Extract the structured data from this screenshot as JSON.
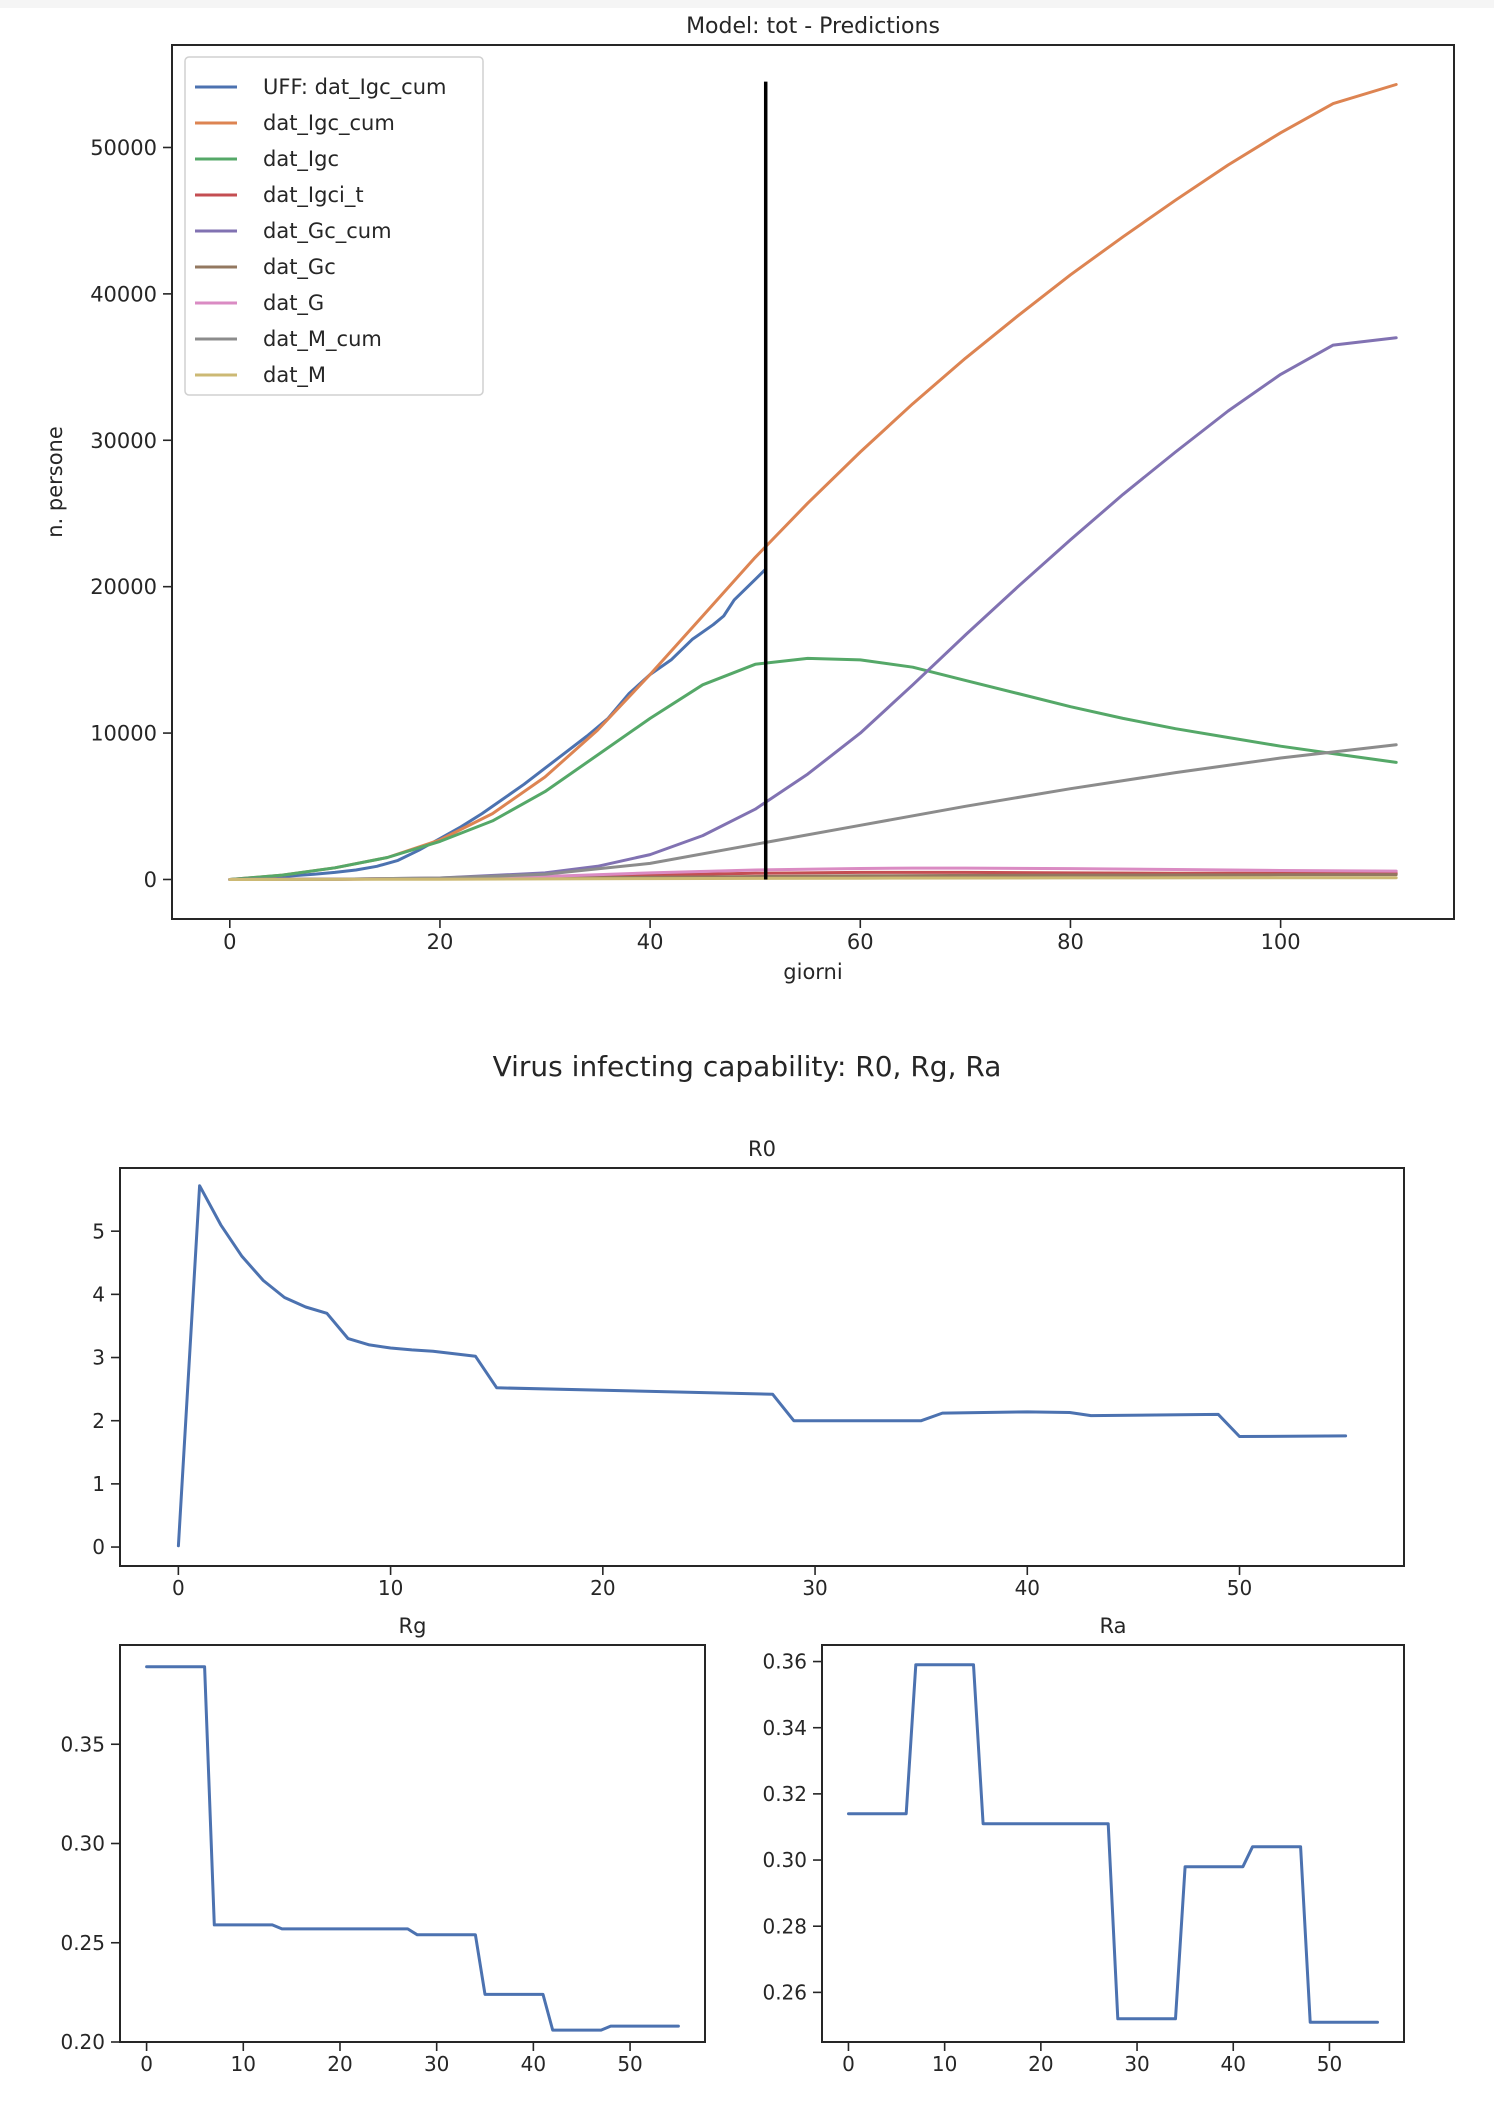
{
  "suptitle": "Virus infecting capability: R0, Rg, Ra",
  "chart_data": [
    {
      "id": "predictions",
      "type": "line",
      "title": "Model: tot - Predictions",
      "xlabel": "giorni",
      "ylabel": "n. persone",
      "xlim": [
        -5.5,
        116.5
      ],
      "ylim": [
        -2700,
        57000
      ],
      "xticks": [
        0,
        20,
        40,
        60,
        80,
        100
      ],
      "yticks": [
        0,
        10000,
        20000,
        30000,
        40000,
        50000
      ],
      "grid": false,
      "legend_position": "upper left",
      "vline": {
        "x": 51,
        "y0": 0,
        "y1": 54500,
        "color": "#000000"
      },
      "series": [
        {
          "name": "UFF: dat_Igc_cum",
          "color": "#4c72b0",
          "x": [
            0,
            2,
            4,
            6,
            8,
            10,
            12,
            14,
            16,
            18,
            20,
            22,
            24,
            26,
            28,
            30,
            32,
            34,
            36,
            38,
            40,
            42,
            44,
            46,
            47,
            48,
            50,
            51
          ],
          "y": [
            0,
            80,
            150,
            250,
            350,
            480,
            650,
            900,
            1300,
            2000,
            2800,
            3600,
            4500,
            5500,
            6500,
            7600,
            8700,
            9800,
            11000,
            12700,
            14000,
            15000,
            16400,
            17400,
            18000,
            19100,
            20500,
            21200
          ]
        },
        {
          "name": "dat_Igc_cum",
          "color": "#dd8452",
          "x": [
            0,
            5,
            10,
            15,
            20,
            25,
            30,
            35,
            40,
            45,
            50,
            55,
            60,
            65,
            70,
            75,
            80,
            85,
            90,
            95,
            100,
            105,
            111
          ],
          "y": [
            0,
            300,
            800,
            1500,
            2700,
            4500,
            7000,
            10200,
            14000,
            18000,
            22000,
            25700,
            29200,
            32500,
            35600,
            38500,
            41300,
            43900,
            46400,
            48800,
            51000,
            53000,
            54300
          ]
        },
        {
          "name": "dat_Igc",
          "color": "#55a868",
          "x": [
            0,
            5,
            10,
            15,
            20,
            25,
            30,
            35,
            40,
            45,
            50,
            55,
            60,
            65,
            70,
            75,
            80,
            85,
            90,
            95,
            100,
            105,
            111
          ],
          "y": [
            0,
            300,
            800,
            1500,
            2600,
            4000,
            6000,
            8500,
            11000,
            13300,
            14700,
            15100,
            15000,
            14500,
            13600,
            12700,
            11800,
            11000,
            10300,
            9700,
            9100,
            8600,
            8000
          ]
        },
        {
          "name": "dat_Igci_t",
          "color": "#c44e52",
          "x": [
            0,
            10,
            20,
            30,
            40,
            50,
            60,
            70,
            80,
            90,
            100,
            111
          ],
          "y": [
            0,
            20,
            60,
            150,
            300,
            420,
            480,
            480,
            450,
            430,
            420,
            420
          ]
        },
        {
          "name": "dat_Gc_cum",
          "color": "#8172b2",
          "x": [
            0,
            10,
            20,
            30,
            35,
            40,
            45,
            50,
            55,
            60,
            65,
            70,
            75,
            80,
            85,
            90,
            95,
            100,
            105,
            111
          ],
          "y": [
            0,
            20,
            100,
            450,
            900,
            1700,
            3000,
            4800,
            7200,
            10000,
            13300,
            16700,
            20000,
            23200,
            26300,
            29200,
            32000,
            34500,
            36500,
            37000
          ]
        },
        {
          "name": "dat_Gc",
          "color": "#937860",
          "x": [
            0,
            20,
            40,
            60,
            80,
            100,
            111
          ],
          "y": [
            0,
            50,
            150,
            250,
            300,
            320,
            330
          ]
        },
        {
          "name": "dat_G",
          "color": "#da8bc3",
          "x": [
            0,
            10,
            20,
            30,
            40,
            50,
            60,
            65,
            70,
            80,
            90,
            100,
            111
          ],
          "y": [
            0,
            20,
            80,
            200,
            450,
            650,
            750,
            780,
            780,
            740,
            680,
            610,
            570
          ]
        },
        {
          "name": "dat_M_cum",
          "color": "#8c8c8c",
          "x": [
            0,
            10,
            20,
            30,
            40,
            50,
            60,
            70,
            80,
            90,
            100,
            111
          ],
          "y": [
            0,
            20,
            100,
            350,
            1100,
            2400,
            3700,
            5000,
            6200,
            7300,
            8300,
            9200
          ]
        },
        {
          "name": "dat_M",
          "color": "#ccb974",
          "x": [
            0,
            20,
            40,
            60,
            80,
            100,
            111
          ],
          "y": [
            0,
            20,
            60,
            90,
            110,
            120,
            120
          ]
        }
      ]
    },
    {
      "id": "r0",
      "type": "line",
      "title": "R0",
      "xlabel": "",
      "ylabel": "",
      "xlim": [
        -2.75,
        57.75
      ],
      "ylim": [
        -0.3,
        6.0
      ],
      "xticks": [
        0,
        10,
        20,
        30,
        40,
        50
      ],
      "yticks": [
        0,
        1,
        2,
        3,
        4,
        5
      ],
      "grid": false,
      "series": [
        {
          "name": "",
          "color": "#4c72b0",
          "x": [
            0,
            1,
            2,
            3,
            4,
            5,
            6,
            7,
            8,
            9,
            10,
            11,
            12,
            13,
            14,
            15,
            28,
            29,
            35,
            36,
            40,
            42,
            43,
            49,
            50,
            55
          ],
          "y": [
            0.02,
            5.72,
            5.1,
            4.6,
            4.22,
            3.95,
            3.8,
            3.7,
            3.3,
            3.2,
            3.15,
            3.12,
            3.1,
            3.06,
            3.02,
            2.52,
            2.42,
            2.0,
            2.0,
            2.12,
            2.14,
            2.13,
            2.08,
            2.1,
            1.75,
            1.76
          ]
        }
      ]
    },
    {
      "id": "rg",
      "type": "line",
      "title": "Rg",
      "xlabel": "",
      "ylabel": "",
      "xlim": [
        -2.75,
        57.75
      ],
      "ylim": [
        0.2,
        0.4
      ],
      "xticks": [
        0,
        10,
        20,
        30,
        40,
        50
      ],
      "yticks": [
        0.2,
        0.25,
        0.3,
        0.35
      ],
      "ytick_labels": [
        "0.20",
        "0.25",
        "0.30",
        "0.35"
      ],
      "grid": false,
      "series": [
        {
          "name": "",
          "color": "#4c72b0",
          "x": [
            0,
            6,
            7,
            13,
            14,
            27,
            28,
            34,
            35,
            41,
            42,
            47,
            48,
            55
          ],
          "y": [
            0.389,
            0.389,
            0.259,
            0.259,
            0.257,
            0.257,
            0.254,
            0.254,
            0.224,
            0.224,
            0.206,
            0.206,
            0.208,
            0.208
          ]
        }
      ]
    },
    {
      "id": "ra",
      "type": "line",
      "title": "Ra",
      "xlabel": "",
      "ylabel": "",
      "xlim": [
        -2.75,
        57.75
      ],
      "ylim": [
        0.245,
        0.365
      ],
      "xticks": [
        0,
        10,
        20,
        30,
        40,
        50
      ],
      "yticks": [
        0.26,
        0.28,
        0.3,
        0.32,
        0.34,
        0.36
      ],
      "ytick_labels": [
        "0.26",
        "0.28",
        "0.30",
        "0.32",
        "0.34",
        "0.36"
      ],
      "grid": false,
      "series": [
        {
          "name": "",
          "color": "#4c72b0",
          "x": [
            0,
            6,
            7,
            13,
            14,
            27,
            28,
            34,
            35,
            41,
            42,
            47,
            48,
            55
          ],
          "y": [
            0.314,
            0.314,
            0.359,
            0.359,
            0.311,
            0.311,
            0.252,
            0.252,
            0.298,
            0.298,
            0.304,
            0.304,
            0.251,
            0.251
          ]
        }
      ]
    }
  ]
}
